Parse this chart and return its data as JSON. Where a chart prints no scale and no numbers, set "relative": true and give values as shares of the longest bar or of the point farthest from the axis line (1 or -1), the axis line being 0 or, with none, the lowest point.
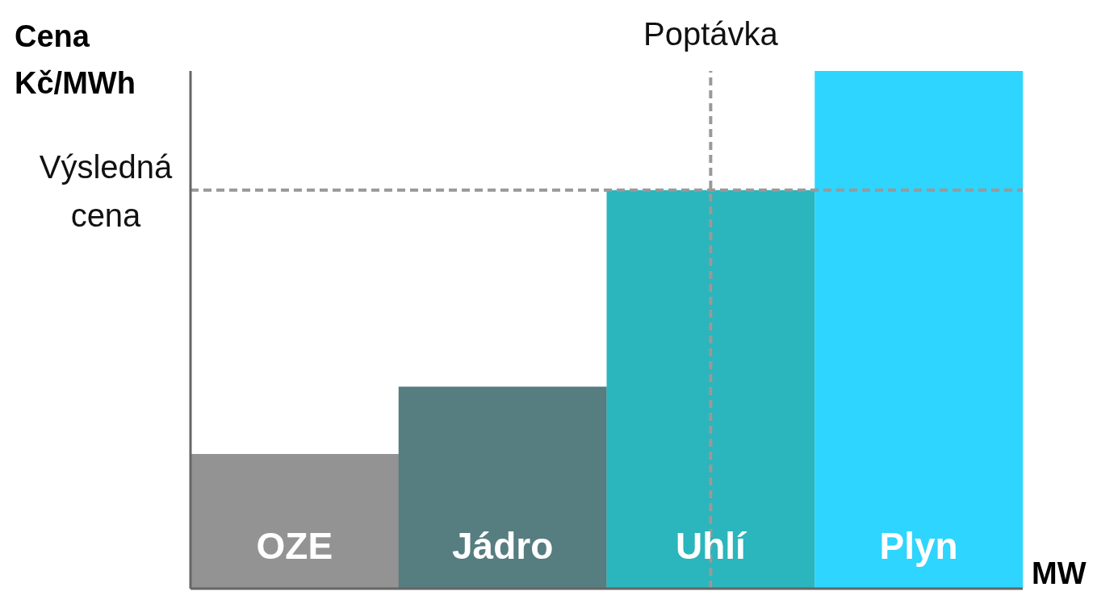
{
  "chart_data": {
    "type": "bar",
    "relative": true,
    "ylabel": "Cena Kč/MWh",
    "xlabel": "MW",
    "categories": [
      "OZE",
      "Jádro",
      "Uhlí",
      "Plyn"
    ],
    "values": [
      0.26,
      0.39,
      0.77,
      1
    ],
    "colors": [
      "#939393",
      "#567d80",
      "#2bb5bc",
      "#2ed5fe"
    ],
    "ref_lines": [
      {
        "axis": "y",
        "value": 0.77,
        "label": "Výsledná cena",
        "color": "#999999",
        "line_style": "dashed"
      },
      {
        "axis": "x",
        "value": "Uhlí",
        "label": "Poptávka",
        "color": "#999999",
        "line_style": "dashed"
      }
    ],
    "grid": false,
    "legend": false
  }
}
